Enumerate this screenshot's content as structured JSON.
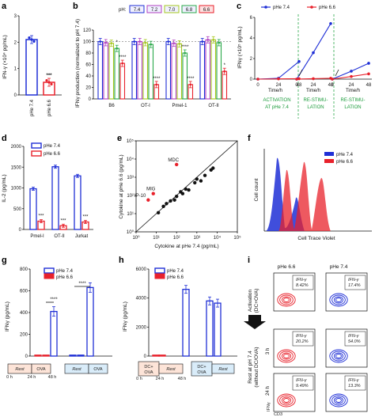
{
  "figure": {
    "colors": {
      "blue": "#1f2fd6",
      "red": "#e8212b",
      "green": "#2aa84a",
      "gray": "#7f7f7f",
      "pH73": "#a6c820",
      "pH70": "#e0a030",
      "pH72": "#b040c0"
    },
    "panels": {
      "a": {
        "letter": "a",
        "ylabel": "IFN-γ (×10⁴ pg/mL)",
        "ticks": [
          "0",
          "1",
          "2",
          "3"
        ],
        "xlabels": [
          "pHe 7.4",
          "pHe 6.6"
        ],
        "sig": "***"
      },
      "b": {
        "letter": "b",
        "ylabel": "IFNγ production (normalized to pH 7.4)",
        "ticks": [
          "0",
          "20",
          "40",
          "60",
          "80",
          "100",
          "120"
        ],
        "legend_title": "pH:",
        "legend": [
          "7.4",
          "7.2",
          "7.0",
          "6.8",
          "6.6"
        ],
        "groups": [
          "B6",
          "OT-I",
          "Pmel-1",
          "OT-II"
        ],
        "sig": [
          "*",
          "****",
          "****",
          "****",
          "****",
          "*"
        ]
      },
      "c": {
        "letter": "c",
        "ylabel": "IFNγ (×10⁵ pg/mL)",
        "ticks": [
          "0",
          "2",
          "4",
          "6"
        ],
        "legend": [
          "pHe 7.4",
          "pHe 6.6"
        ],
        "xticks": [
          "0",
          "24",
          "48",
          "0",
          "24",
          "48",
          "0",
          "24",
          "48"
        ],
        "xunit": "Time/h",
        "phases": [
          "ACTIVATION",
          "AT pHe 7.4",
          "RE-STIMU-",
          "LATION",
          "RE-STIMU-",
          "LATION"
        ]
      },
      "d": {
        "letter": "d",
        "ylabel": "IL-2 (pg/mL)",
        "ticks": [
          "0",
          "500",
          "1000",
          "1500",
          "2000"
        ],
        "legend": [
          "pHe 7.4",
          "pHe 6.6"
        ],
        "groups": [
          "Pmel-I",
          "OT-II",
          "Jurkat"
        ],
        "sig": "***"
      },
      "e": {
        "letter": "e",
        "ylabel": "Cytokine at pHe 6.6 (pg/mL)",
        "xlabel": "Cytokine at pHe 7.4 (pg/mL)",
        "ticks": [
          "10⁰",
          "10¹",
          "10²",
          "10³",
          "10⁴",
          "10⁵"
        ],
        "labels": [
          "MDC",
          "MIG",
          "IP-10"
        ]
      },
      "f": {
        "letter": "f",
        "ylabel": "Cell count",
        "xlabel": "Cell Trace Violet",
        "legend": [
          "pHe 7.4",
          "pHe 6.6"
        ]
      },
      "g": {
        "letter": "g",
        "ylabel": "IFNγ (pg/mL)",
        "ticks": [
          "0",
          "200",
          "400",
          "600",
          "800"
        ],
        "legend": [
          "pHe 7.4",
          "pHe 6.6"
        ],
        "sig": "****",
        "steps": [
          "Rest",
          "OVA",
          "Rest",
          "OVA"
        ],
        "times": [
          "0 h",
          "24 h",
          "48 h"
        ]
      },
      "h": {
        "letter": "h",
        "ylabel": "IFNγ (pg/mL)",
        "ticks": [
          "0",
          "2000",
          "4000",
          "6000"
        ],
        "legend": [
          "pHe 7.4",
          "pHe 6.6"
        ],
        "steps": [
          "DC+",
          "OVA",
          "Rest",
          "DC+",
          "OVA",
          "Rest"
        ],
        "times": [
          "0 h",
          "24 h",
          "48 h"
        ]
      },
      "i": {
        "letter": "i",
        "cols": [
          "pHe 6.6",
          "pHe 7.4"
        ],
        "rows": [
          "Activation",
          "(DC+OVA)",
          "Rest at pH 7.4",
          "(without DC/OVA)"
        ],
        "times": [
          "3 h",
          "24 h"
        ],
        "gates": [
          [
            "IFN-γ",
            "8.42%"
          ],
          [
            "IFN-γ",
            "17.4%"
          ],
          [
            "IFN-γ",
            "20.2%"
          ],
          [
            "IFN-γ",
            "54.0%"
          ],
          [
            "IFN-γ",
            "9.49%"
          ],
          [
            "IFN-γ",
            "13.3%"
          ]
        ],
        "axes": [
          "IFNγ",
          "CD3"
        ]
      }
    }
  },
  "chart_data": [
    {
      "panel": "a",
      "type": "bar",
      "categories": [
        "pHe 7.4",
        "pHe 6.6"
      ],
      "values": [
        2.1,
        0.48
      ],
      "ylim": [
        0,
        3
      ],
      "ylabel": "IFN-γ (×10⁴ pg/mL)"
    },
    {
      "panel": "b",
      "type": "bar",
      "categories": [
        "B6",
        "OT-I",
        "Pmel-1",
        "OT-II"
      ],
      "legend_title": "pH:",
      "series": [
        {
          "name": "7.4",
          "values": [
            100,
            100,
            100,
            100
          ]
        },
        {
          "name": "7.2",
          "values": [
            98,
            100,
            97,
            103
          ]
        },
        {
          "name": "7.0",
          "values": [
            97,
            98,
            96,
            103
          ]
        },
        {
          "name": "6.8",
          "values": [
            88,
            95,
            80,
            98
          ]
        },
        {
          "name": "6.6",
          "values": [
            62,
            25,
            25,
            48
          ]
        }
      ],
      "ylim": [
        0,
        120
      ],
      "ylabel": "IFNγ production (normalized to pH 7.4)"
    },
    {
      "panel": "c",
      "type": "line",
      "series": [
        {
          "name": "pHe 7.4",
          "x": [
            0,
            24,
            48
          ],
          "values": [
            0,
            0.1,
            2.0
          ]
        },
        {
          "name": "pHe 7.4",
          "x": [
            0,
            24,
            48
          ],
          "values": [
            0,
            3.0,
            6.3
          ]
        },
        {
          "name": "pHe 7.4",
          "x": [
            0,
            24,
            48
          ],
          "values": [
            0,
            0.9,
            1.8
          ]
        },
        {
          "name": "pHe 6.6",
          "x": [
            0,
            24,
            48
          ],
          "values": [
            0,
            0.03,
            0.05
          ]
        },
        {
          "name": "pHe 6.6",
          "x": [
            0,
            24,
            48
          ],
          "values": [
            0,
            0.05,
            0.1
          ]
        },
        {
          "name": "pHe 6.6",
          "x": [
            0,
            24,
            48
          ],
          "values": [
            0,
            0.3,
            0.6
          ]
        }
      ],
      "ylim": [
        0,
        7
      ],
      "ylabel": "IFNγ (×10⁵ pg/mL)",
      "xlabel": "Time/h"
    },
    {
      "panel": "d",
      "type": "bar",
      "categories": [
        "Pmel-I",
        "OT-II",
        "Jurkat"
      ],
      "series": [
        {
          "name": "pHe 7.4",
          "values": [
            980,
            1510,
            1290
          ]
        },
        {
          "name": "pHe 6.6",
          "values": [
            200,
            90,
            180
          ]
        }
      ],
      "ylim": [
        0,
        2000
      ],
      "ylabel": "IL-2 (pg/mL)"
    },
    {
      "panel": "e",
      "type": "scatter",
      "x": [
        1.1,
        1.35,
        1.5,
        1.7,
        1.9,
        2.0,
        2.2,
        2.3,
        2.45,
        2.6,
        2.9,
        3.0,
        3.2,
        3.4,
        3.7,
        3.8,
        2.0,
        0.85,
        0.6
      ],
      "y": [
        1.05,
        1.4,
        1.55,
        1.7,
        1.75,
        1.95,
        2.2,
        2.1,
        2.35,
        2.3,
        2.7,
        2.9,
        2.8,
        3.1,
        3.4,
        3.5,
        3.7,
        2.1,
        1.75
      ],
      "labels": [
        "",
        "",
        "",
        "",
        "",
        "",
        "",
        "",
        "",
        "",
        "",
        "",
        "",
        "",
        "",
        "",
        "MDC",
        "MIG",
        "IP-10"
      ],
      "xlim": [
        0,
        5
      ],
      "ylim": [
        0,
        5
      ],
      "xlabel": "Cytokine at pHe 7.4 (pg/mL)",
      "ylabel": "Cytokine at pHe 6.6 (pg/mL)"
    },
    {
      "panel": "g",
      "type": "bar",
      "categories": [
        "0 h",
        "24 h",
        "48 h",
        "0 h",
        "24 h",
        "48 h"
      ],
      "series": [
        {
          "name": "pHe 7.4",
          "values": [
            5,
            5,
            410,
            5,
            5,
            630
          ]
        },
        {
          "name": "pHe 6.6",
          "values": [
            5,
            5,
            0,
            5,
            5,
            0
          ]
        }
      ],
      "ylim": [
        0,
        800
      ],
      "ylabel": "IFNγ (pg/mL)"
    },
    {
      "panel": "h",
      "type": "bar",
      "categories": [
        "0 h",
        "24 h",
        "48 h"
      ],
      "series": [
        {
          "name": "pHe 7.4",
          "values": [
            20,
            4600,
            3800
          ]
        },
        {
          "name": "pHe 6.6",
          "values": [
            20,
            0,
            3650
          ]
        }
      ],
      "ylim": [
        0,
        6000
      ],
      "ylabel": "IFNγ (pg/mL)"
    }
  ]
}
